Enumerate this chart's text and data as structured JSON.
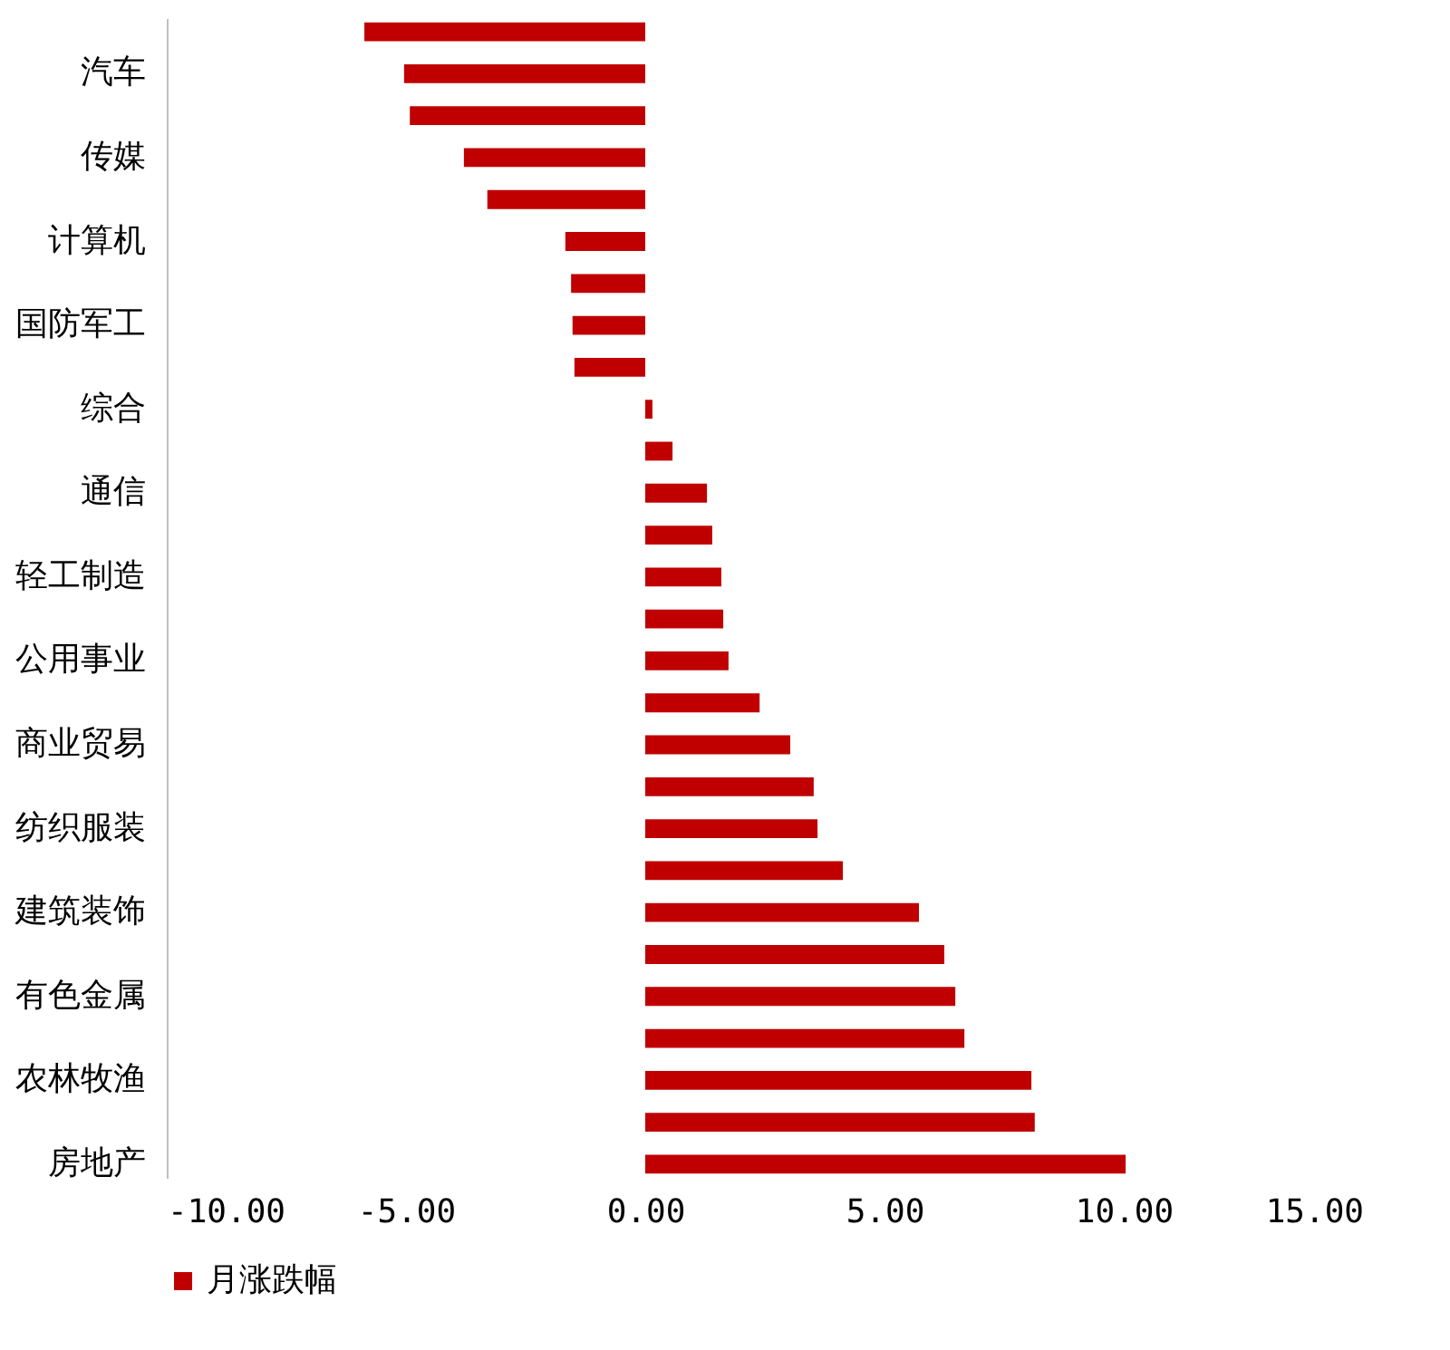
{
  "chart_data": {
    "type": "bar",
    "orientation": "horizontal",
    "categories": [
      null,
      "汽车",
      null,
      "传媒",
      null,
      "计算机",
      null,
      "国防军工",
      null,
      "综合",
      null,
      "通信",
      null,
      "轻工制造",
      null,
      "公用事业",
      null,
      "商业贸易",
      null,
      "纺织服装",
      null,
      "建筑装饰",
      null,
      "有色金属",
      null,
      "农林牧渔",
      null,
      "房地产"
    ],
    "series": [
      {
        "name": "月涨跌幅",
        "color": "#c00000",
        "values": [
          -5.87,
          -5.04,
          -4.92,
          -3.79,
          -3.3,
          -1.67,
          -1.55,
          -1.52,
          -1.48,
          0.15,
          0.57,
          1.29,
          1.4,
          1.59,
          1.63,
          1.74,
          2.39,
          3.03,
          3.52,
          3.6,
          4.13,
          5.72,
          6.25,
          6.48,
          6.67,
          8.07,
          8.14,
          10.04
        ]
      }
    ],
    "xlim": [
      -10,
      15
    ],
    "xticks": [
      {
        "value": -10,
        "label": "-10.00"
      },
      {
        "value": -5,
        "label": "-5.00"
      },
      {
        "value": 0,
        "label": "0.00"
      },
      {
        "value": 5,
        "label": "5.00"
      },
      {
        "value": 10,
        "label": "10.00"
      },
      {
        "value": 15,
        "label": "15.00"
      }
    ],
    "grid": false,
    "legend": "bottom"
  }
}
